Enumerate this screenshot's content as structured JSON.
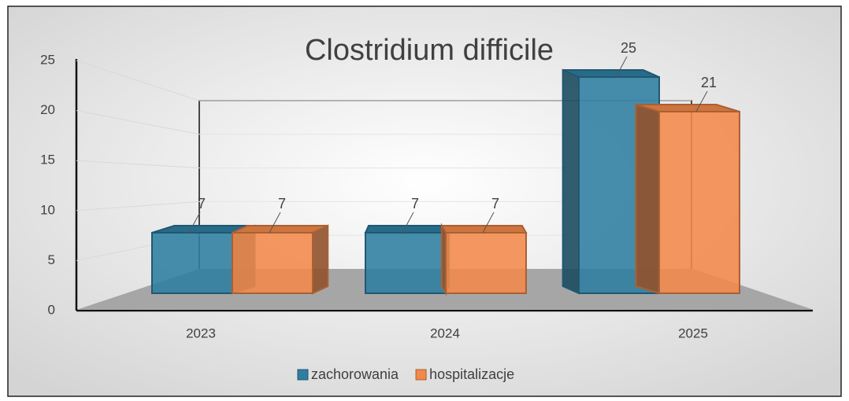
{
  "chart_data": {
    "type": "bar3d",
    "title": "Clostridium difficile",
    "categories": [
      "2023",
      "2024",
      "2025"
    ],
    "series": [
      {
        "name": "zachorowania",
        "color": "#2e7ea1",
        "values": [
          7,
          7,
          25
        ]
      },
      {
        "name": "hospitalizacje",
        "color": "#f2894a",
        "values": [
          7,
          7,
          21
        ]
      }
    ],
    "ylim": [
      0,
      25
    ],
    "yticks": [
      0,
      5,
      10,
      15,
      20,
      25
    ],
    "grid": true,
    "legend": "bottom"
  }
}
